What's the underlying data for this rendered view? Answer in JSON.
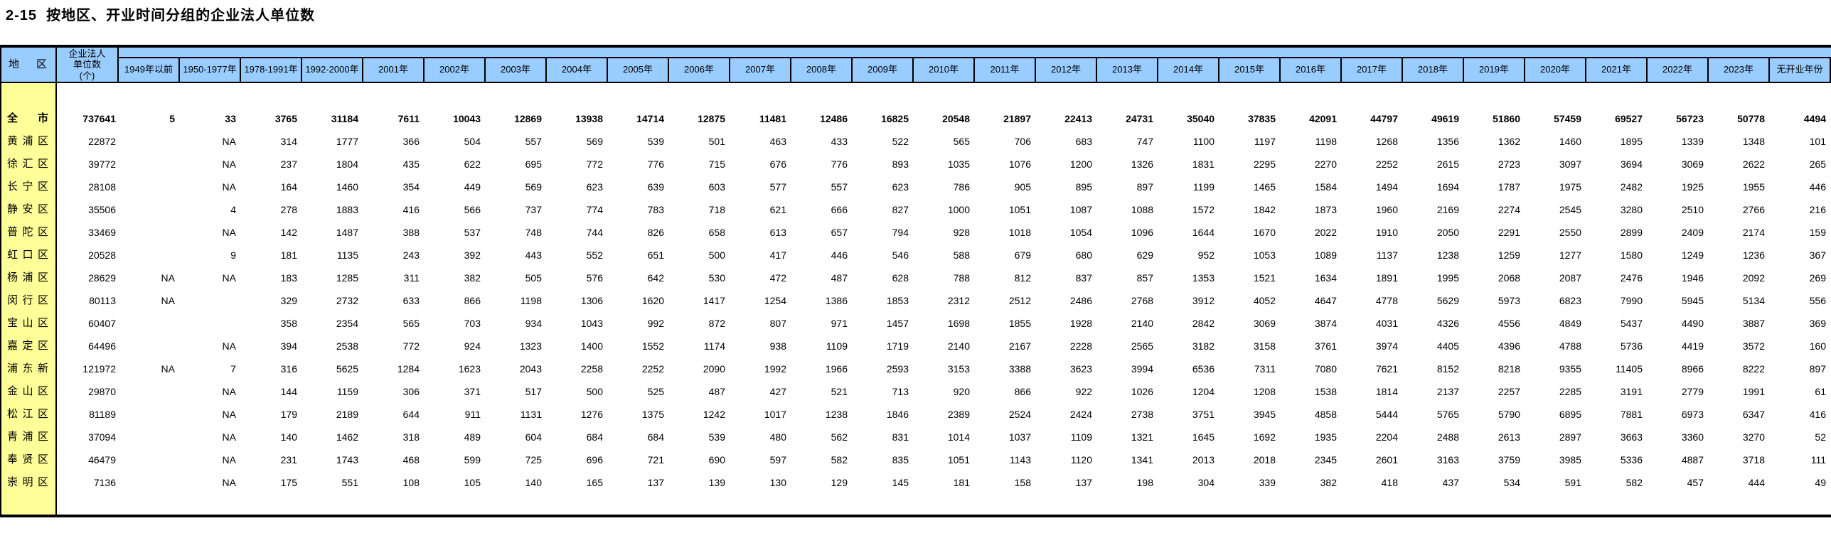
{
  "page": {
    "title": "2-15  按地区、开业时间分组的企业法人单位数"
  },
  "colors": {
    "header_bg": "#99CCFF",
    "region_col_bg": "#FFFF99",
    "border": "#000000",
    "text": "#000000"
  },
  "table": {
    "region_header": "地区",
    "count_header": "企业法人\n单位数\n(个)",
    "year_columns": [
      "1949年以前",
      "1950-1977年",
      "1978-1991年",
      "1992-2000年",
      "2001年",
      "2002年",
      "2003年",
      "2004年",
      "2005年",
      "2006年",
      "2007年",
      "2008年",
      "2009年",
      "2010年",
      "2011年",
      "2012年",
      "2013年",
      "2014年",
      "2015年",
      "2016年",
      "2017年",
      "2018年",
      "2019年",
      "2020年",
      "2021年",
      "2022年",
      "2023年",
      "无开业年份"
    ],
    "na_marker": "NA",
    "rows": [
      {
        "region": "全市",
        "emphasis": true,
        "total": "737641",
        "values": [
          "5",
          "33",
          "3765",
          "31184",
          "7611",
          "10043",
          "12869",
          "13938",
          "14714",
          "12875",
          "11481",
          "12486",
          "16825",
          "20548",
          "21897",
          "22413",
          "24731",
          "35040",
          "37835",
          "42091",
          "44797",
          "49619",
          "51860",
          "57459",
          "69527",
          "56723",
          "50778",
          "4494"
        ]
      },
      {
        "region": "黄浦区",
        "emphasis": false,
        "total": "22872",
        "values": [
          "",
          "NA",
          "314",
          "1777",
          "366",
          "504",
          "557",
          "569",
          "539",
          "501",
          "463",
          "433",
          "522",
          "565",
          "706",
          "683",
          "747",
          "1100",
          "1197",
          "1198",
          "1268",
          "1356",
          "1362",
          "1460",
          "1895",
          "1339",
          "1348",
          "101"
        ]
      },
      {
        "region": "徐汇区",
        "emphasis": false,
        "total": "39772",
        "values": [
          "",
          "NA",
          "237",
          "1804",
          "435",
          "622",
          "695",
          "772",
          "776",
          "715",
          "676",
          "776",
          "893",
          "1035",
          "1076",
          "1200",
          "1326",
          "1831",
          "2295",
          "2270",
          "2252",
          "2615",
          "2723",
          "3097",
          "3694",
          "3069",
          "2622",
          "265"
        ]
      },
      {
        "region": "长宁区",
        "emphasis": false,
        "total": "28108",
        "values": [
          "",
          "NA",
          "164",
          "1460",
          "354",
          "449",
          "569",
          "623",
          "639",
          "603",
          "577",
          "557",
          "623",
          "786",
          "905",
          "895",
          "897",
          "1199",
          "1465",
          "1584",
          "1494",
          "1694",
          "1787",
          "1975",
          "2482",
          "1925",
          "1955",
          "446"
        ]
      },
      {
        "region": "静安区",
        "emphasis": false,
        "total": "35506",
        "values": [
          "",
          "4",
          "278",
          "1883",
          "416",
          "566",
          "737",
          "774",
          "783",
          "718",
          "621",
          "666",
          "827",
          "1000",
          "1051",
          "1087",
          "1088",
          "1572",
          "1842",
          "1873",
          "1960",
          "2169",
          "2274",
          "2545",
          "3280",
          "2510",
          "2766",
          "216"
        ]
      },
      {
        "region": "普陀区",
        "emphasis": false,
        "total": "33469",
        "values": [
          "",
          "NA",
          "142",
          "1487",
          "388",
          "537",
          "748",
          "744",
          "826",
          "658",
          "613",
          "657",
          "794",
          "928",
          "1018",
          "1054",
          "1096",
          "1644",
          "1670",
          "2022",
          "1910",
          "2050",
          "2291",
          "2550",
          "2899",
          "2409",
          "2174",
          "159"
        ]
      },
      {
        "region": "虹口区",
        "emphasis": false,
        "total": "20528",
        "values": [
          "",
          "9",
          "181",
          "1135",
          "243",
          "392",
          "443",
          "552",
          "651",
          "500",
          "417",
          "446",
          "546",
          "588",
          "679",
          "680",
          "629",
          "952",
          "1053",
          "1089",
          "1137",
          "1238",
          "1259",
          "1277",
          "1580",
          "1249",
          "1236",
          "367"
        ]
      },
      {
        "region": "杨浦区",
        "emphasis": false,
        "total": "28629",
        "values": [
          "NA",
          "NA",
          "183",
          "1285",
          "311",
          "382",
          "505",
          "576",
          "642",
          "530",
          "472",
          "487",
          "628",
          "788",
          "812",
          "837",
          "857",
          "1353",
          "1521",
          "1634",
          "1891",
          "1995",
          "2068",
          "2087",
          "2476",
          "1946",
          "2092",
          "269"
        ]
      },
      {
        "region": "闵行区",
        "emphasis": false,
        "total": "80113",
        "values": [
          "NA",
          "",
          "329",
          "2732",
          "633",
          "866",
          "1198",
          "1306",
          "1620",
          "1417",
          "1254",
          "1386",
          "1853",
          "2312",
          "2512",
          "2486",
          "2768",
          "3912",
          "4052",
          "4647",
          "4778",
          "5629",
          "5973",
          "6823",
          "7990",
          "5945",
          "5134",
          "556"
        ]
      },
      {
        "region": "宝山区",
        "emphasis": false,
        "total": "60407",
        "values": [
          "",
          "",
          "358",
          "2354",
          "565",
          "703",
          "934",
          "1043",
          "992",
          "872",
          "807",
          "971",
          "1457",
          "1698",
          "1855",
          "1928",
          "2140",
          "2842",
          "3069",
          "3874",
          "4031",
          "4326",
          "4556",
          "4849",
          "5437",
          "4490",
          "3887",
          "369"
        ]
      },
      {
        "region": "嘉定区",
        "emphasis": false,
        "total": "64496",
        "values": [
          "",
          "NA",
          "394",
          "2538",
          "772",
          "924",
          "1323",
          "1400",
          "1552",
          "1174",
          "938",
          "1109",
          "1719",
          "2140",
          "2167",
          "2228",
          "2565",
          "3182",
          "3158",
          "3761",
          "3974",
          "4405",
          "4396",
          "4788",
          "5736",
          "4419",
          "3572",
          "160"
        ]
      },
      {
        "region": "浦东新区",
        "emphasis": false,
        "total": "121972",
        "values": [
          "NA",
          "7",
          "316",
          "5625",
          "1284",
          "1623",
          "2043",
          "2258",
          "2252",
          "2090",
          "1992",
          "1966",
          "2593",
          "3153",
          "3388",
          "3623",
          "3994",
          "6536",
          "7311",
          "7080",
          "7621",
          "8152",
          "8218",
          "9355",
          "11405",
          "8966",
          "8222",
          "897"
        ]
      },
      {
        "region": "金山区",
        "emphasis": false,
        "total": "29870",
        "values": [
          "",
          "NA",
          "144",
          "1159",
          "306",
          "371",
          "517",
          "500",
          "525",
          "487",
          "427",
          "521",
          "713",
          "920",
          "866",
          "922",
          "1026",
          "1204",
          "1208",
          "1538",
          "1814",
          "2137",
          "2257",
          "2285",
          "3191",
          "2779",
          "1991",
          "61"
        ]
      },
      {
        "region": "松江区",
        "emphasis": false,
        "total": "81189",
        "values": [
          "",
          "NA",
          "179",
          "2189",
          "644",
          "911",
          "1131",
          "1276",
          "1375",
          "1242",
          "1017",
          "1238",
          "1846",
          "2389",
          "2524",
          "2424",
          "2738",
          "3751",
          "3945",
          "4858",
          "5444",
          "5765",
          "5790",
          "6895",
          "7881",
          "6973",
          "6347",
          "416"
        ]
      },
      {
        "region": "青浦区",
        "emphasis": false,
        "total": "37094",
        "values": [
          "",
          "NA",
          "140",
          "1462",
          "318",
          "489",
          "604",
          "684",
          "684",
          "539",
          "480",
          "562",
          "831",
          "1014",
          "1037",
          "1109",
          "1321",
          "1645",
          "1692",
          "1935",
          "2204",
          "2488",
          "2613",
          "2897",
          "3663",
          "3360",
          "3270",
          "52"
        ]
      },
      {
        "region": "奉贤区",
        "emphasis": false,
        "total": "46479",
        "values": [
          "",
          "NA",
          "231",
          "1743",
          "468",
          "599",
          "725",
          "696",
          "721",
          "690",
          "597",
          "582",
          "835",
          "1051",
          "1143",
          "1120",
          "1341",
          "2013",
          "2018",
          "2345",
          "2601",
          "3163",
          "3759",
          "3985",
          "5336",
          "4887",
          "3718",
          "111"
        ]
      },
      {
        "region": "崇明区",
        "emphasis": false,
        "total": "7136",
        "values": [
          "",
          "NA",
          "175",
          "551",
          "108",
          "105",
          "140",
          "165",
          "137",
          "139",
          "130",
          "129",
          "145",
          "181",
          "158",
          "137",
          "198",
          "304",
          "339",
          "382",
          "418",
          "437",
          "534",
          "591",
          "582",
          "457",
          "444",
          "49"
        ]
      }
    ]
  }
}
